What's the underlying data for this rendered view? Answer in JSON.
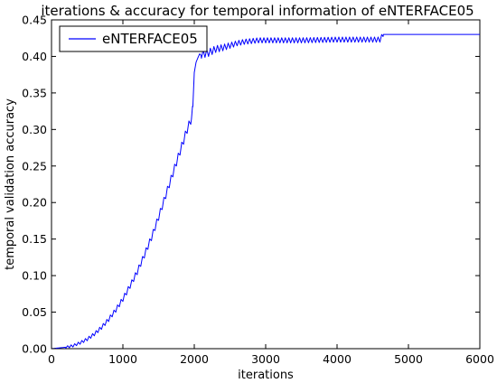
{
  "chart_data": {
    "type": "line",
    "title": "iterations & accuracy for temporal information of eNTERFACE05",
    "xlabel": "iterations",
    "ylabel": "temporal validation accuracy",
    "xlim": [
      0,
      6000
    ],
    "ylim": [
      0,
      0.45
    ],
    "xticks": [
      "0",
      "1000",
      "2000",
      "3000",
      "4000",
      "5000",
      "6000"
    ],
    "yticks": [
      "0.00",
      "0.05",
      "0.10",
      "0.15",
      "0.20",
      "0.25",
      "0.30",
      "0.35",
      "0.40",
      "0.45"
    ],
    "grid": false,
    "legend_position": "top-left",
    "color": "#0000ff",
    "series": [
      {
        "name": "eNTERFACE05",
        "x": [
          0,
          100,
          200,
          250,
          300,
          400,
          500,
          600,
          700,
          800,
          900,
          1000,
          1100,
          1200,
          1300,
          1400,
          1500,
          1600,
          1700,
          1800,
          1900,
          1960,
          1980,
          2000,
          2050,
          2100,
          2200,
          2300,
          2400,
          2500,
          2600,
          2700,
          2800,
          2900,
          3000,
          3500,
          4000,
          4500,
          4600,
          4650,
          5000,
          6000
        ],
        "y": [
          0.0,
          0.001,
          0.002,
          0.003,
          0.004,
          0.008,
          0.013,
          0.02,
          0.029,
          0.04,
          0.053,
          0.068,
          0.086,
          0.105,
          0.128,
          0.152,
          0.18,
          0.21,
          0.24,
          0.27,
          0.3,
          0.315,
          0.33,
          0.38,
          0.4,
          0.403,
          0.405,
          0.41,
          0.412,
          0.415,
          0.418,
          0.42,
          0.421,
          0.422,
          0.422,
          0.422,
          0.423,
          0.423,
          0.423,
          0.43,
          0.43,
          0.43
        ]
      }
    ]
  }
}
